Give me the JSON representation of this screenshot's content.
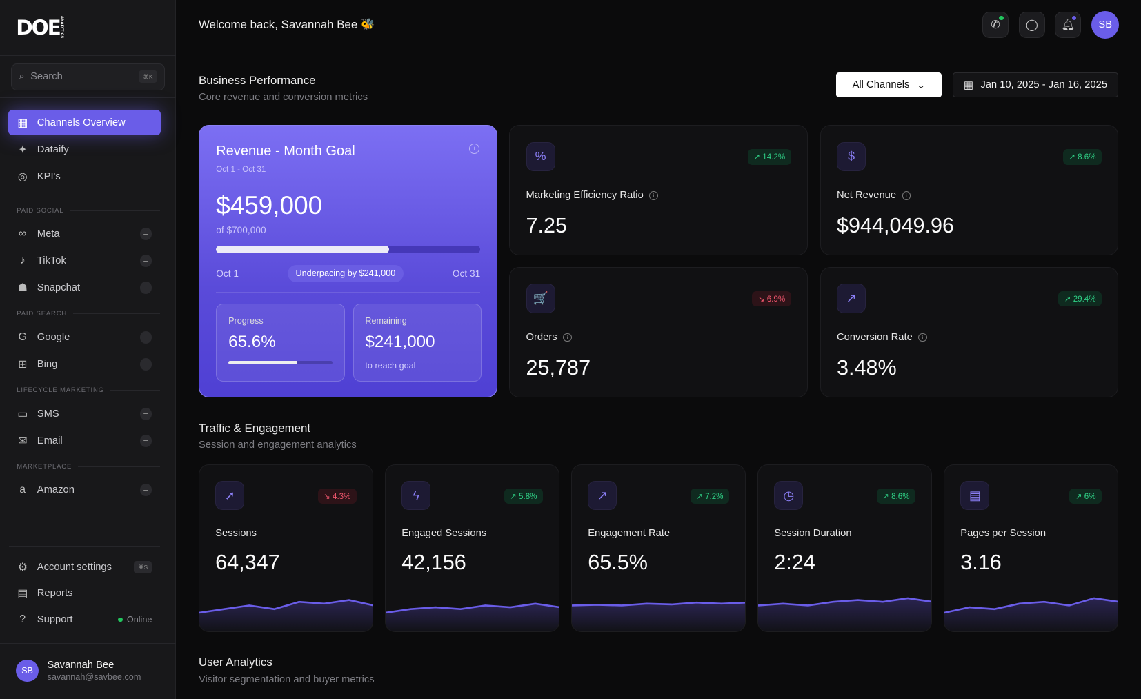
{
  "sidebar": {
    "logo": "DOE",
    "logo_sub": "ANALYTICS",
    "search": {
      "placeholder": "Search",
      "shortcut": "⌘K"
    },
    "main_items": [
      {
        "label": "Channels Overview",
        "icon": "grid-icon"
      },
      {
        "label": "Dataify",
        "icon": "sparkles-icon"
      },
      {
        "label": "KPI's",
        "icon": "target-icon"
      }
    ],
    "sections": [
      {
        "title": "PAID SOCIAL",
        "items": [
          {
            "label": "Meta"
          },
          {
            "label": "TikTok"
          },
          {
            "label": "Snapchat"
          }
        ]
      },
      {
        "title": "PAID SEARCH",
        "items": [
          {
            "label": "Google"
          },
          {
            "label": "Bing"
          }
        ]
      },
      {
        "title": "LIFECYCLE MARKETING",
        "items": [
          {
            "label": "SMS"
          },
          {
            "label": "Email"
          }
        ]
      },
      {
        "title": "MARKETPLACE",
        "items": [
          {
            "label": "Amazon"
          }
        ]
      }
    ],
    "footer": {
      "account": "Account settings",
      "account_shortcut": "⌘S",
      "reports": "Reports",
      "support": "Support",
      "status": "Online"
    },
    "user": {
      "initials": "SB",
      "name": "Savannah Bee",
      "email": "savannah@savbee.com"
    }
  },
  "topbar": {
    "welcome": "Welcome back, Savannah Bee 🐝",
    "avatar": "SB"
  },
  "business": {
    "title": "Business Performance",
    "subtitle": "Core revenue and conversion metrics",
    "channel_select": "All Channels",
    "date_range": "Jan 10, 2025 - Jan 16, 2025",
    "goal": {
      "title": "Revenue - Month Goal",
      "period": "Oct 1 - Oct 31",
      "value": "$459,000",
      "target": "of $700,000",
      "progress_fraction": 0.656,
      "start": "Oct 1",
      "end": "Oct 31",
      "pace": "Underpacing by $241,000",
      "progress_label": "Progress",
      "progress_value": "65.6%",
      "remaining_label": "Remaining",
      "remaining_value": "$241,000",
      "remaining_note": "to reach goal"
    },
    "kpis": [
      {
        "label": "Marketing Efficiency Ratio",
        "value": "7.25",
        "change": "14.2%",
        "trend": "up",
        "icon": "percent-icon",
        "glyph": "%"
      },
      {
        "label": "Net Revenue",
        "value": "$944,049.96",
        "change": "8.6%",
        "trend": "up",
        "icon": "dollar-icon",
        "glyph": "$"
      },
      {
        "label": "Orders",
        "value": "25,787",
        "change": "6.9%",
        "trend": "down",
        "icon": "cart-icon",
        "glyph": "🛒"
      },
      {
        "label": "Conversion Rate",
        "value": "3.48%",
        "change": "29.4%",
        "trend": "up",
        "icon": "trend-up-icon",
        "glyph": "↗"
      }
    ]
  },
  "traffic": {
    "title": "Traffic & Engagement",
    "subtitle": "Session and engagement analytics",
    "cards": [
      {
        "label": "Sessions",
        "value": "64,347",
        "change": "4.3%",
        "trend": "down",
        "icon": "cursor-icon",
        "glyph": "➚",
        "spark": [
          3,
          4,
          5,
          4,
          6,
          5.5,
          6.5,
          5
        ]
      },
      {
        "label": "Engaged Sessions",
        "value": "42,156",
        "change": "5.8%",
        "trend": "up",
        "icon": "bolt-icon",
        "glyph": "ϟ",
        "spark": [
          3,
          4,
          4.5,
          4,
          5,
          4.5,
          5.5,
          4.5
        ]
      },
      {
        "label": "Engagement Rate",
        "value": "65.5%",
        "change": "7.2%",
        "trend": "up",
        "icon": "trend-up-icon",
        "glyph": "↗",
        "spark": [
          5,
          5.2,
          5,
          5.5,
          5.3,
          5.8,
          5.5,
          5.8
        ]
      },
      {
        "label": "Session Duration",
        "value": "2:24",
        "change": "8.6%",
        "trend": "up",
        "icon": "clock-icon",
        "glyph": "◷",
        "spark": [
          5,
          5.5,
          5,
          6,
          6.5,
          6,
          7,
          6
        ]
      },
      {
        "label": "Pages per Session",
        "value": "3.16",
        "change": "6%",
        "trend": "up",
        "icon": "document-icon",
        "glyph": "▤",
        "spark": [
          3,
          4.5,
          4,
          5.5,
          6,
          5,
          7,
          6
        ]
      }
    ]
  },
  "users": {
    "title": "User Analytics",
    "subtitle": "Visitor segmentation and buyer metrics"
  },
  "colors": {
    "accent": "#6a5de8",
    "up": "#2fcf85",
    "down": "#f0566d"
  }
}
